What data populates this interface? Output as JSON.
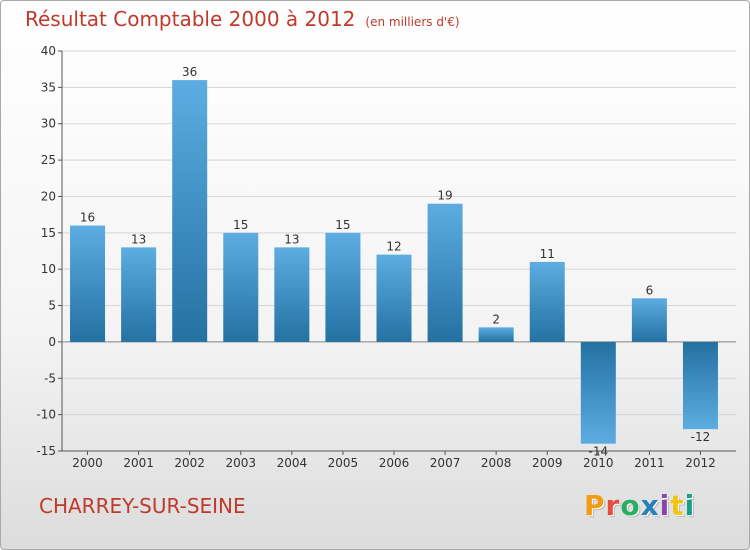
{
  "header": {
    "title": "Résultat Comptable 2000 à 2012",
    "unit": "(en milliers d'€)"
  },
  "footer": {
    "commune": "CHARREY-SUR-SEINE",
    "logo_text": "Proxiti",
    "logo_colors": [
      "#f39c12",
      "#e74c3c",
      "#27ae60",
      "#2980b9",
      "#8e44ad",
      "#f1c40f",
      "#16a085"
    ]
  },
  "chart_data": {
    "type": "bar",
    "title": "Résultat Comptable 2000 à 2012",
    "subtitle": "(en milliers d'€)",
    "xlabel": "",
    "ylabel": "",
    "categories": [
      "2000",
      "2001",
      "2002",
      "2003",
      "2004",
      "2005",
      "2006",
      "2007",
      "2008",
      "2009",
      "2010",
      "2011",
      "2012"
    ],
    "values": [
      16,
      13,
      36,
      15,
      13,
      15,
      12,
      19,
      2,
      11,
      -14,
      6,
      -12
    ],
    "value_labels": [
      "16",
      "13",
      "36",
      "15",
      "13",
      "15",
      "12",
      "19",
      "2",
      "11",
      "-14",
      "6",
      "-12"
    ],
    "ylim": [
      -15,
      40
    ],
    "yticks": [
      -15,
      -10,
      -5,
      0,
      5,
      10,
      15,
      20,
      25,
      30,
      35,
      40
    ],
    "grid": true,
    "bar_color_light": "#5dade2",
    "bar_color_dark": "#2471a3"
  }
}
